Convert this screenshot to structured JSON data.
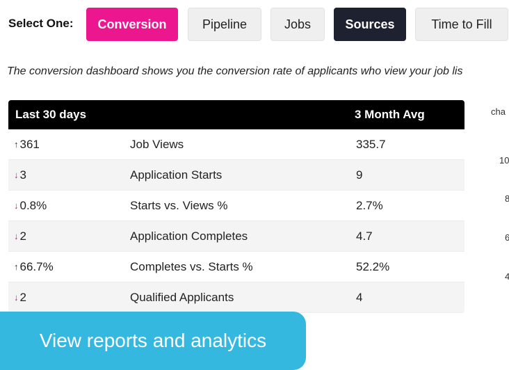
{
  "selector": {
    "label": "Select One:",
    "tabs": [
      {
        "label": "Conversion",
        "state": "active-pink"
      },
      {
        "label": "Pipeline",
        "state": "inactive"
      },
      {
        "label": "Jobs",
        "state": "inactive"
      },
      {
        "label": "Sources",
        "state": "active-dark"
      },
      {
        "label": "Time to Fill",
        "state": "inactive"
      }
    ]
  },
  "description": "The conversion dashboard shows you the conversion rate of applicants who view your job lis",
  "table": {
    "header_left": "Last 30 days",
    "header_right": "3 Month Avg",
    "rows": [
      {
        "trend": "up",
        "value": "361",
        "metric": "Job Views",
        "avg": "335.7"
      },
      {
        "trend": "down",
        "value": "3",
        "metric": "Application Starts",
        "avg": "9"
      },
      {
        "trend": "down",
        "value": "0.8%",
        "metric": "Starts vs. Views %",
        "avg": "2.7%"
      },
      {
        "trend": "down",
        "value": "2",
        "metric": "Application Completes",
        "avg": "4.7"
      },
      {
        "trend": "up",
        "value": "66.7%",
        "metric": "Completes vs. Starts %",
        "avg": "52.2%"
      },
      {
        "trend": "down",
        "value": "2",
        "metric": "Qualified Applicants",
        "avg": "4"
      }
    ]
  },
  "side_chart_fragments": [
    "cha",
    "10",
    "8",
    "6",
    "4"
  ],
  "cta": {
    "label": "View reports and analytics"
  },
  "colors": {
    "pink": "#ec178f",
    "dark": "#1d2130",
    "cyan": "#35b8e0",
    "down_arrow": "#c2188a"
  }
}
